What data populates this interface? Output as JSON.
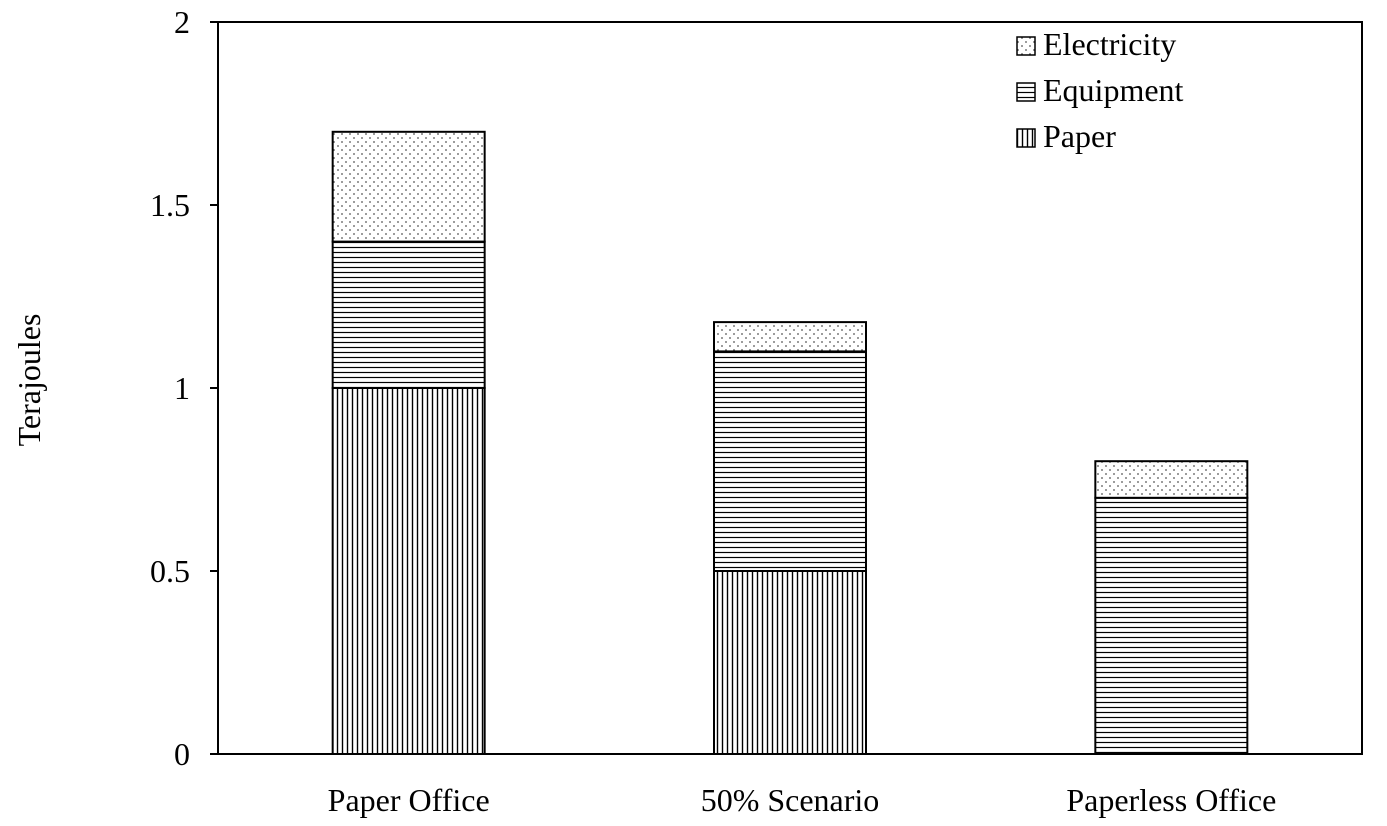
{
  "chart_data": {
    "type": "bar",
    "stacked": true,
    "categories": [
      "Paper Office",
      "50% Scenario",
      "Paperless Office"
    ],
    "series": [
      {
        "name": "Paper",
        "values": [
          1.0,
          0.5,
          0.0
        ],
        "pattern": "vertical-lines"
      },
      {
        "name": "Equipment",
        "values": [
          0.4,
          0.6,
          0.7
        ],
        "pattern": "horizontal-lines"
      },
      {
        "name": "Electricity",
        "values": [
          0.3,
          0.08,
          0.1
        ],
        "pattern": "dots"
      }
    ],
    "legend_order": [
      "Electricity",
      "Equipment",
      "Paper"
    ],
    "title": "",
    "xlabel": "",
    "ylabel": "Terajoules",
    "ylim": [
      0,
      2
    ],
    "yticks": [
      0,
      0.5,
      1,
      1.5,
      2
    ],
    "ytick_labels": [
      "0",
      "0.5",
      "1",
      "1.5",
      "2"
    ],
    "grid": false,
    "legend_position": "top-right",
    "colors": {
      "line": "#000000",
      "background": "#ffffff"
    }
  }
}
